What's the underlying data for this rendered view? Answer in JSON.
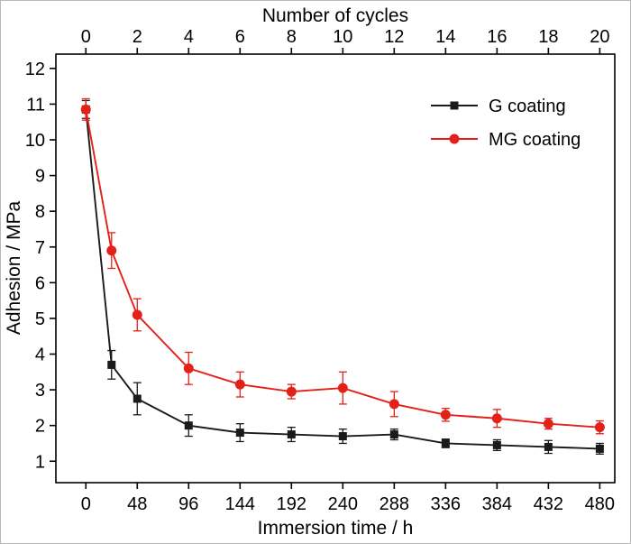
{
  "chart_data": {
    "type": "line",
    "top_axis_label": "Number of cycles",
    "xlabel": "Immersion time / h",
    "ylabel": "Adhesion / MPa",
    "x_ticks": [
      0,
      48,
      96,
      144,
      192,
      240,
      288,
      336,
      384,
      432,
      480
    ],
    "top_ticks": [
      0,
      2,
      4,
      6,
      8,
      10,
      12,
      14,
      16,
      18,
      20
    ],
    "y_ticks": [
      1,
      2,
      3,
      4,
      5,
      6,
      7,
      8,
      9,
      10,
      11,
      12
    ],
    "xlim": [
      -28,
      494
    ],
    "ylim": [
      0.4,
      12.4
    ],
    "grid": false,
    "legend_position": "upper-right",
    "colors": {
      "g_coating": "#1a1a1a",
      "mg_coating": "#e32119",
      "axis": "#000000"
    },
    "series": [
      {
        "name": "G coating",
        "color": "#1a1a1a",
        "marker": "square",
        "x": [
          0,
          24,
          48,
          96,
          144,
          192,
          240,
          288,
          336,
          384,
          432,
          480
        ],
        "y": [
          10.85,
          3.7,
          2.75,
          2.0,
          1.8,
          1.75,
          1.7,
          1.75,
          1.5,
          1.45,
          1.4,
          1.35
        ],
        "yerr": [
          0.25,
          0.4,
          0.45,
          0.3,
          0.25,
          0.2,
          0.2,
          0.15,
          0.12,
          0.15,
          0.18,
          0.15
        ]
      },
      {
        "name": "MG coating",
        "color": "#e32119",
        "marker": "circle",
        "x": [
          0,
          24,
          48,
          96,
          144,
          192,
          240,
          288,
          336,
          384,
          432,
          480
        ],
        "y": [
          10.85,
          6.9,
          5.1,
          3.6,
          3.15,
          2.95,
          3.05,
          2.6,
          2.3,
          2.2,
          2.05,
          1.95
        ],
        "yerr": [
          0.3,
          0.5,
          0.45,
          0.45,
          0.35,
          0.2,
          0.45,
          0.35,
          0.18,
          0.25,
          0.15,
          0.18
        ]
      }
    ]
  }
}
